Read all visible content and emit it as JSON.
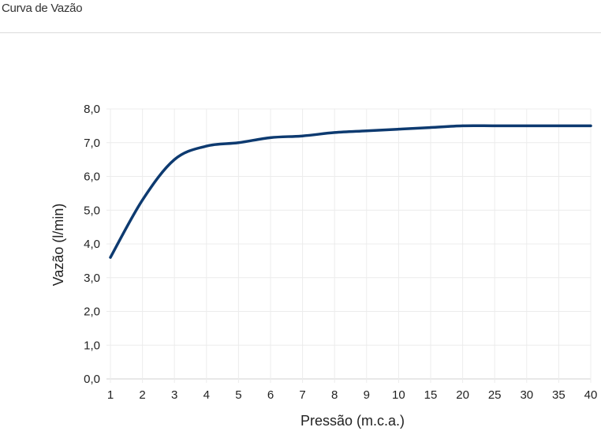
{
  "header": {
    "title": "Curva de Vazão"
  },
  "chart_data": {
    "type": "line",
    "title": "",
    "xlabel": "Pressão (m.c.a.)",
    "ylabel": "Vazão (l/min)",
    "categories": [
      "1",
      "2",
      "3",
      "4",
      "5",
      "6",
      "7",
      "8",
      "9",
      "10",
      "15",
      "20",
      "25",
      "30",
      "35",
      "40"
    ],
    "values": [
      3.6,
      5.3,
      6.5,
      6.9,
      7.0,
      7.15,
      7.2,
      7.3,
      7.35,
      7.4,
      7.45,
      7.5,
      7.5,
      7.5,
      7.5,
      7.5
    ],
    "yticks": [
      "0,0",
      "1,0",
      "2,0",
      "3,0",
      "4,0",
      "5,0",
      "6,0",
      "7,0",
      "8,0"
    ],
    "ylim": [
      0,
      8
    ],
    "grid": true,
    "smooth": true,
    "line_color": "#0d3a70",
    "legend": "none"
  }
}
